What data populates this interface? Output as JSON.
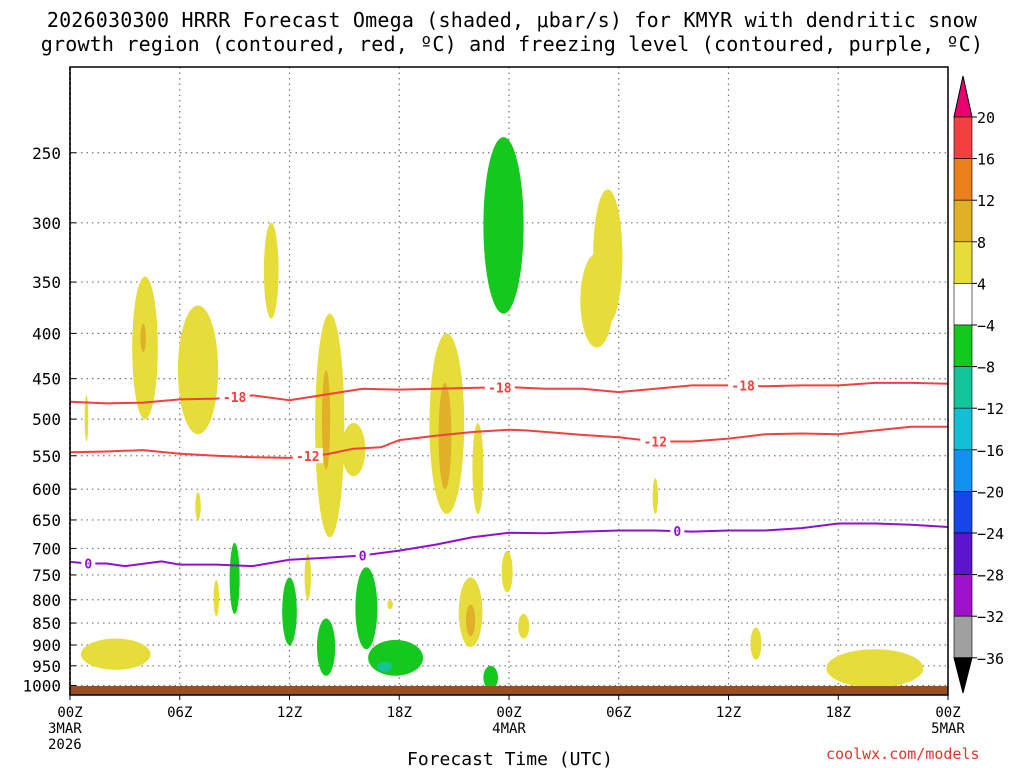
{
  "title_line1": "2026030300 HRRR Forecast Omega (shaded, μbar/s) for KMYR with dendritic snow",
  "title_line2": "growth region (contoured, red, ºC) and freezing level (contoured, purple, ºC)",
  "credit": "coolwx.com/models",
  "chart_data": {
    "type": "time-height contour",
    "xlabel": "Forecast Time (UTC)",
    "x_ticks": [
      {
        "hour": 0,
        "lines": [
          "00Z",
          "3MAR",
          "2026"
        ]
      },
      {
        "hour": 6,
        "lines": [
          "06Z"
        ]
      },
      {
        "hour": 12,
        "lines": [
          "12Z"
        ]
      },
      {
        "hour": 18,
        "lines": [
          "18Z"
        ]
      },
      {
        "hour": 24,
        "lines": [
          "00Z",
          "4MAR"
        ]
      },
      {
        "hour": 30,
        "lines": [
          "06Z"
        ]
      },
      {
        "hour": 36,
        "lines": [
          "12Z"
        ]
      },
      {
        "hour": 42,
        "lines": [
          "18Z"
        ]
      },
      {
        "hour": 48,
        "lines": [
          "00Z",
          "5MAR"
        ]
      }
    ],
    "xlim": [
      0,
      48
    ],
    "y_ticks": [
      250,
      300,
      350,
      400,
      450,
      500,
      550,
      600,
      650,
      700,
      750,
      800,
      850,
      900,
      950,
      1000
    ],
    "ylim_hpa": [
      1025,
      200
    ],
    "y_scale": "log-pressure",
    "grid": true,
    "colorbar": {
      "levels": [
        "20",
        "16",
        "12",
        "8",
        "4",
        "−4",
        "−8",
        "−12",
        "−16",
        "−20",
        "−24",
        "−28",
        "−32",
        "−36"
      ],
      "bins": [
        {
          "name": ">20",
          "color": "#e8006e"
        },
        {
          "name": "16-20",
          "color": "#f04040"
        },
        {
          "name": "12-16",
          "color": "#e9801d"
        },
        {
          "name": "8-12",
          "color": "#e0b028"
        },
        {
          "name": "4-8",
          "color": "#e6dc3a"
        },
        {
          "name": "-4-4",
          "color": "#ffffff"
        },
        {
          "name": "-8--4",
          "color": "#14c81e"
        },
        {
          "name": "-12--8",
          "color": "#12c69a"
        },
        {
          "name": "-16--12",
          "color": "#14bed4"
        },
        {
          "name": "-20--16",
          "color": "#1490f0"
        },
        {
          "name": "-24--20",
          "color": "#1846e6"
        },
        {
          "name": "-28--24",
          "color": "#5a16c8"
        },
        {
          "name": "-32--28",
          "color": "#a012c8"
        },
        {
          "name": "-36--32",
          "color": "#a0a0a0"
        },
        {
          "name": "<-36",
          "color": "#000000"
        }
      ]
    },
    "contours": [
      {
        "name": "dgz_top",
        "label": "-18",
        "color": "#f04040",
        "points": [
          [
            0,
            478
          ],
          [
            2,
            480
          ],
          [
            4,
            479
          ],
          [
            6,
            475
          ],
          [
            8,
            474
          ],
          [
            10,
            470
          ],
          [
            12,
            476
          ],
          [
            14,
            469
          ],
          [
            16,
            462
          ],
          [
            18,
            463
          ],
          [
            20,
            462
          ],
          [
            22,
            461
          ],
          [
            24,
            460
          ],
          [
            26,
            462
          ],
          [
            28,
            462
          ],
          [
            30,
            466
          ],
          [
            32,
            462
          ],
          [
            34,
            458
          ],
          [
            36,
            458
          ],
          [
            38,
            459
          ],
          [
            40,
            458
          ],
          [
            42,
            458
          ],
          [
            44,
            455
          ],
          [
            46,
            455
          ],
          [
            48,
            456
          ]
        ],
        "label_hours": [
          9,
          23.5,
          36.8
        ]
      },
      {
        "name": "dgz_bottom",
        "label": "-12",
        "color": "#f04040",
        "points": [
          [
            0,
            545
          ],
          [
            2,
            544
          ],
          [
            4,
            542
          ],
          [
            6,
            547
          ],
          [
            8,
            550
          ],
          [
            10,
            552
          ],
          [
            12,
            553
          ],
          [
            14,
            548
          ],
          [
            15.5,
            540
          ],
          [
            17,
            538
          ],
          [
            18,
            528
          ],
          [
            20,
            522
          ],
          [
            22,
            517
          ],
          [
            24,
            514
          ],
          [
            25,
            515
          ],
          [
            28,
            521
          ],
          [
            30,
            524
          ],
          [
            32,
            530
          ],
          [
            34,
            530
          ],
          [
            36,
            526
          ],
          [
            38,
            520
          ],
          [
            40,
            519
          ],
          [
            42,
            520
          ],
          [
            44,
            515
          ],
          [
            46,
            510
          ],
          [
            48,
            510
          ]
        ],
        "label_hours": [
          13,
          32
        ]
      },
      {
        "name": "freezing_level",
        "label": "0",
        "color": "#9010d0",
        "points": [
          [
            0,
            725
          ],
          [
            1,
            728
          ],
          [
            2,
            728
          ],
          [
            3,
            733
          ],
          [
            5,
            724
          ],
          [
            6,
            730
          ],
          [
            8,
            730
          ],
          [
            10,
            733
          ],
          [
            12,
            721
          ],
          [
            14,
            717
          ],
          [
            16,
            713
          ],
          [
            18,
            704
          ],
          [
            20,
            693
          ],
          [
            22,
            680
          ],
          [
            24,
            672
          ],
          [
            26,
            673
          ],
          [
            28,
            670
          ],
          [
            30,
            668
          ],
          [
            32,
            668
          ],
          [
            34,
            670
          ],
          [
            36,
            668
          ],
          [
            38,
            668
          ],
          [
            40,
            664
          ],
          [
            42,
            656
          ],
          [
            44,
            656
          ],
          [
            46,
            658
          ],
          [
            48,
            662
          ]
        ],
        "label_hours": [
          1,
          16,
          33.2
        ]
      }
    ],
    "shaded_regions": [
      {
        "bin": "4-8",
        "hour": 0.9,
        "hours_wide": 0.2,
        "p_top": 470,
        "p_bot": 530
      },
      {
        "bin": "4-8",
        "hour": 4.1,
        "hours_wide": 1.4,
        "p_top": 345,
        "p_bot": 500
      },
      {
        "bin": "8-12",
        "hour": 4.0,
        "hours_wide": 0.3,
        "p_top": 390,
        "p_bot": 420
      },
      {
        "bin": "4-8",
        "hour": 7.0,
        "hours_wide": 2.2,
        "p_top": 372,
        "p_bot": 520
      },
      {
        "bin": "4-8",
        "hour": 11.0,
        "hours_wide": 0.8,
        "p_top": 300,
        "p_bot": 385
      },
      {
        "bin": "4-8",
        "hour": 7.0,
        "hours_wide": 0.3,
        "p_top": 605,
        "p_bot": 650
      },
      {
        "bin": "4-8",
        "hour": 2.5,
        "hours_wide": 3.8,
        "p_top": 885,
        "p_bot": 960
      },
      {
        "bin": "4-8",
        "hour": 14.2,
        "hours_wide": 1.6,
        "p_top": 380,
        "p_bot": 680
      },
      {
        "bin": "8-12",
        "hour": 14.0,
        "hours_wide": 0.45,
        "p_top": 440,
        "p_bot": 570
      },
      {
        "bin": "4-8",
        "hour": 15.5,
        "hours_wide": 1.3,
        "p_top": 505,
        "p_bot": 580
      },
      {
        "bin": "4-8",
        "hour": 20.6,
        "hours_wide": 1.9,
        "p_top": 400,
        "p_bot": 640
      },
      {
        "bin": "8-12",
        "hour": 20.5,
        "hours_wide": 0.7,
        "p_top": 455,
        "p_bot": 600
      },
      {
        "bin": "4-8",
        "hour": 22.3,
        "hours_wide": 0.6,
        "p_top": 505,
        "p_bot": 640
      },
      {
        "bin": "4-8",
        "hour": 13.0,
        "hours_wide": 0.35,
        "p_top": 710,
        "p_bot": 800
      },
      {
        "bin": "4-8",
        "hour": 8.0,
        "hours_wide": 0.3,
        "p_top": 760,
        "p_bot": 835
      },
      {
        "bin": "4-8",
        "hour": 21.9,
        "hours_wide": 1.3,
        "p_top": 755,
        "p_bot": 905
      },
      {
        "bin": "8-12",
        "hour": 21.9,
        "hours_wide": 0.5,
        "p_top": 810,
        "p_bot": 880
      },
      {
        "bin": "4-8",
        "hour": 23.9,
        "hours_wide": 0.6,
        "p_top": 705,
        "p_bot": 785
      },
      {
        "bin": "4-8",
        "hour": 24.8,
        "hours_wide": 0.6,
        "p_top": 830,
        "p_bot": 885
      },
      {
        "bin": "4-8",
        "hour": 17.5,
        "hours_wide": 0.3,
        "p_top": 800,
        "p_bot": 820
      },
      {
        "bin": "4-8",
        "hour": 28.8,
        "hours_wide": 1.8,
        "p_top": 325,
        "p_bot": 415
      },
      {
        "bin": "4-8",
        "hour": 29.4,
        "hours_wide": 1.6,
        "p_top": 275,
        "p_bot": 390
      },
      {
        "bin": "4-8",
        "hour": 32.0,
        "hours_wide": 0.3,
        "p_top": 583,
        "p_bot": 640
      },
      {
        "bin": "4-8",
        "hour": 37.5,
        "hours_wide": 0.6,
        "p_top": 860,
        "p_bot": 935
      },
      {
        "bin": "4-8",
        "hour": 44.0,
        "hours_wide": 5.3,
        "p_top": 910,
        "p_bot": 1005
      },
      {
        "bin": "-8--4",
        "hour": 23.7,
        "hours_wide": 2.2,
        "p_top": 240,
        "p_bot": 380
      },
      {
        "bin": "-8--4",
        "hour": 9.0,
        "hours_wide": 0.55,
        "p_top": 690,
        "p_bot": 830
      },
      {
        "bin": "-8--4",
        "hour": 12.0,
        "hours_wide": 0.8,
        "p_top": 755,
        "p_bot": 900
      },
      {
        "bin": "-8--4",
        "hour": 14.0,
        "hours_wide": 1.0,
        "p_top": 840,
        "p_bot": 975
      },
      {
        "bin": "-8--4",
        "hour": 16.2,
        "hours_wide": 1.2,
        "p_top": 735,
        "p_bot": 910
      },
      {
        "bin": "-8--4",
        "hour": 17.8,
        "hours_wide": 3.0,
        "p_top": 888,
        "p_bot": 975
      },
      {
        "bin": "-12--8",
        "hour": 17.2,
        "hours_wide": 0.8,
        "p_top": 940,
        "p_bot": 965
      },
      {
        "bin": "-8--4",
        "hour": 23.0,
        "hours_wide": 0.8,
        "p_top": 950,
        "p_bot": 1010
      }
    ]
  }
}
